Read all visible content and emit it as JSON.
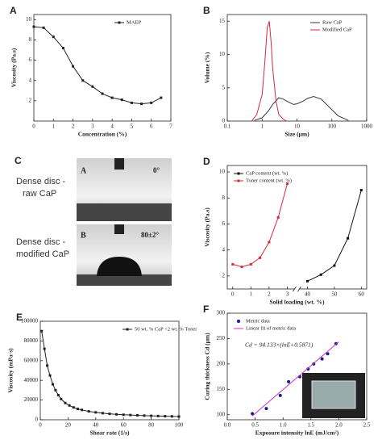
{
  "chart_data": [
    {
      "type": "line",
      "label": "A",
      "x_label": "Concentration (%)",
      "y_label": "Viscosity (Pa.s)",
      "x": [
        0,
        0.5,
        1,
        1.5,
        2,
        2.5,
        3,
        3.5,
        4,
        4.5,
        5,
        5.5,
        6,
        6.5
      ],
      "series": [
        {
          "name": "MAEP",
          "color": "#222222",
          "style": "line-markers",
          "values": [
            9.3,
            9.2,
            8.3,
            7.2,
            5.4,
            4.0,
            3.4,
            2.7,
            2.3,
            2.1,
            1.8,
            1.7,
            1.8,
            2.3
          ]
        }
      ],
      "xlim": [
        0,
        7
      ],
      "xticks": [
        0,
        1,
        2,
        3,
        4,
        5,
        6,
        7
      ],
      "ylim": [
        0,
        10.5
      ],
      "yticks": [
        2,
        4,
        6,
        8,
        10
      ],
      "legend": "upper right"
    },
    {
      "type": "line",
      "label": "B",
      "x_label": "Size (μm)",
      "y_label": "Volume (%)",
      "xscale": "log",
      "series": [
        {
          "name": "Raw CaP",
          "color": "#333355",
          "style": "line",
          "x": [
            0.6,
            1,
            1.5,
            2,
            3,
            4,
            6,
            8,
            10,
            15,
            20,
            30,
            50,
            80,
            150,
            300
          ],
          "values": [
            0.1,
            0.5,
            1.5,
            2.5,
            3.5,
            3.3,
            2.8,
            2.5,
            2.6,
            3.0,
            3.4,
            3.7,
            3.3,
            2.2,
            0.8,
            0.1
          ]
        },
        {
          "name": "Modified CaP",
          "color": "#d62a3a",
          "style": "line",
          "x": [
            0.5,
            0.7,
            1,
            1.2,
            1.4,
            1.6,
            1.8,
            2,
            2.5,
            3,
            4,
            5
          ],
          "values": [
            0,
            1,
            4,
            9,
            14,
            15,
            12,
            8,
            3,
            1,
            0.3,
            0
          ]
        }
      ],
      "xlim": [
        0.1,
        1000
      ],
      "xticks": [
        0.1,
        1,
        10,
        100,
        1000
      ],
      "ylim": [
        0,
        16
      ],
      "yticks": [
        0,
        5,
        10,
        15
      ],
      "legend": "upper right"
    },
    {
      "type": "line",
      "label": "D",
      "x_label": "Solid loading (wt. %)",
      "y_label": "Viscosity (Pa.s)",
      "series": [
        {
          "name": "CaP content (wt. %)",
          "color": "#111111",
          "style": "line-markers",
          "x": [
            40,
            45,
            50,
            55,
            60
          ],
          "values": [
            1.6,
            2.1,
            2.8,
            4.9,
            8.6
          ]
        },
        {
          "name": "Toner content (wt. %)",
          "color": "#d62a3a",
          "style": "line-markers",
          "x": [
            0,
            0.5,
            1,
            1.5,
            2,
            2.5,
            3
          ],
          "values": [
            2.9,
            2.7,
            2.9,
            3.4,
            4.6,
            6.5,
            9.1
          ]
        }
      ],
      "xlim": [
        [
          -0.3,
          3.4
        ],
        [
          37,
          62
        ]
      ],
      "xticks": [
        0,
        1,
        2,
        3,
        40,
        50,
        60
      ],
      "ylim": [
        1,
        10.5
      ],
      "yticks": [
        2,
        4,
        6,
        8,
        10
      ],
      "legend": "upper left"
    },
    {
      "type": "line",
      "label": "E",
      "x_label": "Shear rate (1/s)",
      "y_label": "Viscosity (mPa·s)",
      "x": [
        1,
        3,
        5,
        7,
        9,
        11,
        13,
        15,
        18,
        21,
        24,
        27,
        30,
        35,
        40,
        45,
        50,
        55,
        60,
        65,
        70,
        75,
        80,
        85,
        90,
        95,
        100
      ],
      "series": [
        {
          "name": "50 wt. % CaP +2 wt. % Toner",
          "color": "#222222",
          "style": "line-markers",
          "values": [
            90000,
            72000,
            55000,
            45000,
            36000,
            30000,
            25000,
            21000,
            17000,
            14500,
            12500,
            11000,
            10000,
            8500,
            7500,
            6700,
            6000,
            5500,
            5100,
            4800,
            4500,
            4200,
            4000,
            3800,
            3600,
            3400,
            3300
          ]
        }
      ],
      "xlim": [
        0,
        100
      ],
      "xticks": [
        0,
        20,
        40,
        60,
        80,
        100
      ],
      "ylim": [
        0,
        100000
      ],
      "yticks": [
        0,
        20000,
        40000,
        60000,
        80000,
        100000
      ],
      "legend": "upper right"
    },
    {
      "type": "scatter",
      "label": "F",
      "x_label": "Exposure intensity lnE (mJ/cm²)",
      "y_label": "Curing thickness Cd (μm)",
      "annotation": "Cd = 94.133×(lnE+0.5871)",
      "series": [
        {
          "name": "Metric data",
          "color": "#1a1a8c",
          "style": "markers",
          "x": [
            0.45,
            0.7,
            0.95,
            1.1,
            1.3,
            1.45,
            1.55,
            1.7,
            1.8,
            1.95
          ],
          "values": [
            102,
            112,
            138,
            165,
            175,
            190,
            200,
            210,
            220,
            240
          ]
        },
        {
          "name": "Linear fit of metric data",
          "color": "#cc33cc",
          "style": "line",
          "x": [
            0.45,
            2.0
          ],
          "values": [
            97.6,
            243.5
          ]
        }
      ],
      "xlim": [
        0,
        2.5
      ],
      "xticks": [
        {
          "value": 0,
          "label": "0.0"
        },
        0.5,
        {
          "value": 1,
          "label": "1.0"
        },
        1.5,
        {
          "value": 2,
          "label": "2.0"
        },
        2.5
      ],
      "ylim": [
        90,
        300
      ],
      "yticks": [
        100,
        150,
        200,
        250,
        300
      ],
      "legend": "upper left"
    }
  ],
  "photo": {
    "label": "C",
    "rows": [
      {
        "text": [
          "Dense disc  -",
          "raw CaP"
        ],
        "tag": "A",
        "angle": "0°"
      },
      {
        "text": [
          "Dense disc  -",
          "modified CaP"
        ],
        "tag": "B",
        "angle": "80±2°"
      }
    ]
  }
}
